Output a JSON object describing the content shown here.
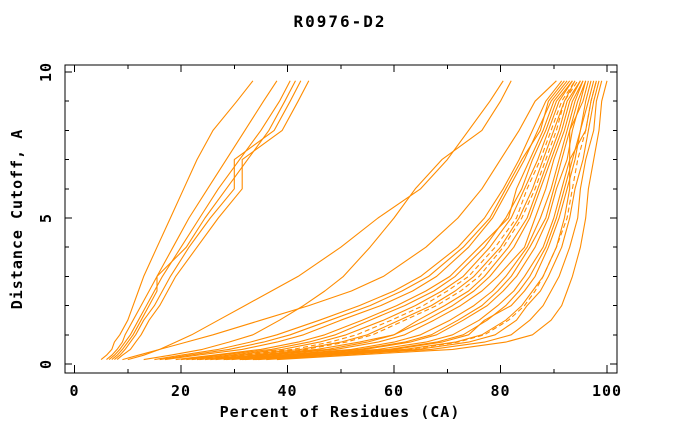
{
  "title": "R0976-D2",
  "colors": {
    "curve": "#ff8c00",
    "axis": "#000000",
    "background": "#ffffff"
  },
  "chart_data": {
    "type": "line",
    "title": "R0976-D2",
    "xlabel": "Percent of Residues (CA)",
    "ylabel": "Distance Cutoff, A",
    "xlim": [
      -1.8,
      102
    ],
    "ylim": [
      -0.3,
      10.25
    ],
    "grid": false,
    "legend": "none",
    "xticks_major": [
      0,
      20,
      40,
      60,
      80,
      100
    ],
    "xticks_minor": [
      10,
      30,
      50,
      70,
      90
    ],
    "yticks_major": [
      0,
      5,
      10
    ],
    "yticks_minor": [
      1,
      2,
      3,
      4,
      6,
      7,
      8,
      9
    ],
    "x_is": "percent of CA residues under cutoff",
    "y_is": "distance cutoff in angstroms",
    "cutoffs": [
      0.15,
      0.3,
      0.5,
      0.75,
      1.0,
      1.5,
      2.0,
      2.5,
      3.0,
      4.0,
      5.0,
      6.0,
      7.0,
      8.0,
      9.0,
      9.7
    ],
    "series": [
      {
        "id": "m01",
        "group": "left-outlier",
        "dash": false,
        "percents": [
          5,
          6,
          7,
          7.5,
          8.5,
          10,
          11,
          12,
          13,
          15.5,
          18,
          20.5,
          23,
          26,
          30.5,
          33.5
        ]
      },
      {
        "id": "m02",
        "group": "left-outlier",
        "dash": false,
        "percents": [
          6,
          7,
          8,
          9,
          9.5,
          11,
          12.5,
          14,
          15.5,
          18.5,
          21.5,
          25,
          28.5,
          32,
          35.5,
          38
        ]
      },
      {
        "id": "m03",
        "group": "left-outlier",
        "dash": false,
        "percents": [
          6.5,
          7.5,
          8.5,
          9.5,
          10.5,
          12,
          13.5,
          15,
          16.5,
          20,
          23.5,
          27,
          31,
          35,
          38.5,
          40.5
        ]
      },
      {
        "id": "m04",
        "group": "left-outlier",
        "dash": false,
        "percents": [
          7,
          8,
          9,
          10,
          11,
          12.5,
          14,
          15.5,
          15.5,
          21,
          24.5,
          28.5,
          32.5,
          36.5,
          39.5,
          41.5
        ]
      },
      {
        "id": "m05",
        "group": "left-outlier",
        "dash": false,
        "percents": [
          7.5,
          8.5,
          9.5,
          10.5,
          11.5,
          13,
          15,
          16.5,
          18,
          21.5,
          25.5,
          30,
          30,
          37.5,
          40.5,
          42.5
        ]
      },
      {
        "id": "m06",
        "group": "left-outlier",
        "dash": false,
        "percents": [
          8,
          9,
          10.5,
          11.5,
          12.5,
          14,
          16,
          17.5,
          19,
          23,
          27,
          31.5,
          31.5,
          39,
          42,
          44
        ]
      },
      {
        "id": "m07",
        "group": "middle",
        "dash": false,
        "percents": [
          10,
          13,
          16,
          19,
          22,
          27,
          32,
          37,
          42,
          50,
          57,
          65,
          70,
          74,
          78,
          80.5
        ]
      },
      {
        "id": "m08",
        "group": "middle",
        "dash": false,
        "percents": [
          13,
          18,
          24,
          29,
          33.5,
          38.5,
          43,
          47,
          50.5,
          55.5,
          60,
          64,
          69,
          76.5,
          80,
          82
        ]
      },
      {
        "id": "m09",
        "group": "cluster",
        "dash": false,
        "percents": [
          9,
          12,
          16,
          21,
          26,
          35,
          44,
          52,
          58,
          66,
          72,
          76.5,
          80,
          83.5,
          86.5,
          90.5
        ]
      },
      {
        "id": "m10",
        "group": "cluster",
        "dash": false,
        "percents": [
          15,
          20,
          27,
          33,
          38,
          46,
          53.5,
          60,
          65,
          72,
          77,
          80.5,
          83.5,
          86,
          88.5,
          91.5
        ]
      },
      {
        "id": "m11",
        "group": "cluster",
        "dash": false,
        "percents": [
          16,
          21.5,
          29,
          35.5,
          40.5,
          48,
          55.5,
          61.5,
          66.5,
          73,
          78,
          81,
          84,
          87.5,
          89,
          92
        ]
      },
      {
        "id": "m12",
        "group": "cluster",
        "dash": false,
        "percents": [
          17,
          23,
          31.5,
          38,
          43,
          50,
          57.5,
          63.5,
          68,
          74,
          78.5,
          81.5,
          84.5,
          87,
          89.5,
          92.5
        ]
      },
      {
        "id": "m13",
        "group": "cluster",
        "dash": false,
        "percents": [
          19,
          26,
          35,
          42,
          47,
          54,
          60.5,
          66,
          70.5,
          76,
          81.5,
          83,
          85.5,
          88,
          90,
          93
        ]
      },
      {
        "id": "m14",
        "group": "cluster",
        "dash": false,
        "percents": [
          20,
          27,
          37,
          44,
          49,
          55.5,
          62,
          67.5,
          71.5,
          77,
          81,
          84,
          86,
          88.5,
          90.5,
          93.5
        ]
      },
      {
        "id": "m15",
        "group": "cluster",
        "dash": false,
        "percents": [
          21,
          29,
          39,
          46,
          51,
          58,
          64,
          69,
          73,
          78,
          82,
          84.5,
          87,
          89,
          91,
          93.5
        ]
      },
      {
        "id": "m16",
        "group": "cluster",
        "dash": true,
        "percents": [
          22,
          30,
          41,
          48,
          53,
          59.5,
          65.5,
          70,
          74,
          79,
          83,
          85,
          87.5,
          89.5,
          91.5,
          94
        ]
      },
      {
        "id": "m17",
        "group": "cluster",
        "dash": false,
        "percents": [
          23,
          31,
          42.5,
          50,
          55,
          61,
          67,
          71.5,
          75,
          80,
          83.5,
          86,
          88,
          90,
          92,
          94
        ]
      },
      {
        "id": "m18",
        "group": "cluster",
        "dash": true,
        "percents": [
          23.5,
          32,
          43.5,
          51,
          56,
          62,
          68,
          72.5,
          76,
          80.5,
          84,
          86.5,
          88.5,
          90.5,
          92,
          94.5
        ]
      },
      {
        "id": "m19",
        "group": "cluster",
        "dash": false,
        "percents": [
          24.5,
          33.5,
          45.5,
          53.5,
          60,
          64.5,
          69.5,
          74,
          77,
          81.5,
          85,
          87,
          89,
          91,
          92.5,
          95
        ]
      },
      {
        "id": "m20",
        "group": "cluster",
        "dash": false,
        "percents": [
          25.5,
          35,
          47.5,
          55,
          60,
          66,
          71,
          75,
          78,
          82.5,
          85.5,
          87.5,
          89.5,
          91.5,
          93,
          95
        ]
      },
      {
        "id": "m21",
        "group": "cluster",
        "dash": false,
        "percents": [
          26.5,
          36,
          49,
          57,
          62,
          67.5,
          72.5,
          76.5,
          79.5,
          84.5,
          86.5,
          88.5,
          90,
          92,
          93.5,
          95.5
        ]
      },
      {
        "id": "m22",
        "group": "cluster",
        "dash": false,
        "percents": [
          28,
          38,
          52,
          60,
          65,
          70.5,
          75,
          78.5,
          81,
          85,
          87.5,
          89.5,
          91,
          92.5,
          94,
          95.5
        ]
      },
      {
        "id": "m23",
        "group": "cluster",
        "dash": false,
        "percents": [
          28.5,
          39,
          53.5,
          62,
          67,
          72,
          76.5,
          79.5,
          82,
          85.5,
          88.5,
          90,
          91.5,
          93,
          94.5,
          96
        ]
      },
      {
        "id": "m24",
        "group": "cluster",
        "dash": false,
        "percents": [
          29.5,
          40,
          54.5,
          63,
          68,
          73,
          77.5,
          80.5,
          83,
          86.5,
          89,
          90.5,
          92.5,
          93.5,
          95,
          96
        ]
      },
      {
        "id": "m25",
        "group": "cluster",
        "dash": false,
        "percents": [
          31,
          42,
          57,
          66,
          71,
          76,
          79.5,
          82.5,
          84.5,
          88,
          90,
          91.5,
          93,
          93,
          95.5,
          96.5
        ]
      },
      {
        "id": "m26",
        "group": "cluster",
        "dash": false,
        "percents": [
          31.5,
          43,
          59,
          68,
          73,
          77.5,
          81,
          83.5,
          85.5,
          88.5,
          90.5,
          92,
          93.5,
          95,
          96,
          97
        ]
      },
      {
        "id": "m27",
        "group": "cluster",
        "dash": false,
        "percents": [
          32,
          44,
          60,
          69,
          74,
          77,
          82,
          84.5,
          86.5,
          89,
          91,
          92.5,
          94,
          95,
          96.5,
          97.5
        ]
      },
      {
        "id": "m28",
        "group": "cluster",
        "dash": false,
        "percents": [
          33.5,
          45.5,
          62,
          71.5,
          76.5,
          81,
          84,
          86,
          88,
          90.5,
          92,
          93,
          93,
          96,
          97,
          98
        ]
      },
      {
        "id": "m29",
        "group": "cluster",
        "dash": true,
        "percents": [
          34,
          46,
          63,
          72,
          77,
          81.5,
          84.5,
          86.5,
          88,
          90.5,
          92.5,
          93.5,
          94.5,
          96,
          97,
          98
        ]
      },
      {
        "id": "m30",
        "group": "cluster",
        "dash": false,
        "percents": [
          34.5,
          47,
          64.5,
          74,
          79,
          83,
          85,
          87.5,
          89,
          91.5,
          93,
          94,
          95.5,
          96.5,
          97.5,
          98.5
        ]
      },
      {
        "id": "m31",
        "group": "cluster",
        "dash": false,
        "percents": [
          36,
          49,
          67,
          77,
          82,
          85.5,
          88,
          89.5,
          91,
          93,
          94.5,
          95,
          96,
          97.5,
          98,
          99
        ]
      },
      {
        "id": "m32",
        "group": "cluster",
        "dash": false,
        "percents": [
          38,
          52,
          71,
          81,
          86,
          89.5,
          91.5,
          92.5,
          93.5,
          95,
          96,
          96.5,
          97.5,
          98.5,
          99,
          100
        ]
      }
    ]
  }
}
